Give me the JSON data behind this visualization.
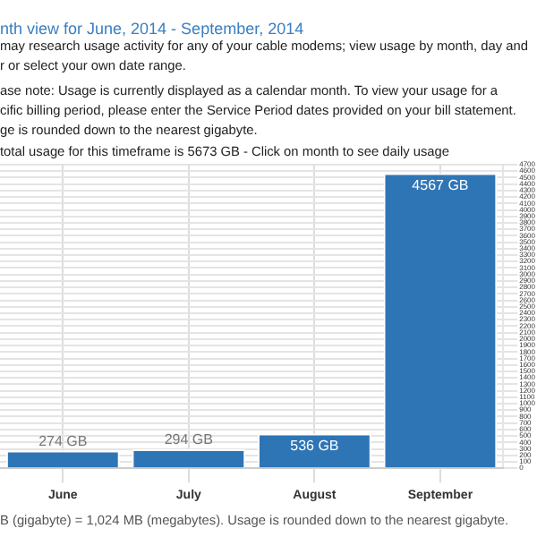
{
  "chart_data": {
    "type": "bar",
    "title": "nth view for June, 2014 - September, 2014",
    "annotations": [
      "may research usage activity for any of your cable modems; view usage by month, day and",
      "r or select your own date range.",
      "ase note: Usage is currently displayed as a calendar month. To view your usage for a",
      "cific billing period, please enter the Service Period dates provided on your bill statement.",
      "ge is rounded down to the nearest gigabyte.",
      "total usage for this timeframe is 5673 GB - Click on month to see daily usage",
      "B (gigabyte) = 1,024 MB (megabytes). Usage is rounded down to the nearest gigabyte."
    ],
    "categories": [
      "June",
      "July",
      "August",
      "September"
    ],
    "values": [
      274,
      294,
      536,
      4567
    ],
    "value_labels": [
      "274 GB",
      "294 GB",
      "536 GB",
      "4567 GB"
    ],
    "color": "#2e75b6",
    "ylim": [
      0,
      4700
    ],
    "yticks": [
      0,
      100,
      200,
      300,
      400,
      500,
      600,
      700,
      800,
      900,
      1000,
      1100,
      1200,
      1300,
      1400,
      1500,
      1600,
      1700,
      1800,
      1900,
      2000,
      2100,
      2200,
      2300,
      2400,
      2500,
      2600,
      2700,
      2800,
      2900,
      3000,
      3100,
      3200,
      3300,
      3400,
      3500,
      3600,
      3700,
      3800,
      3900,
      4000,
      4100,
      4200,
      4300,
      4400,
      4500,
      4600,
      4700
    ],
    "grid": true,
    "legend": false
  }
}
